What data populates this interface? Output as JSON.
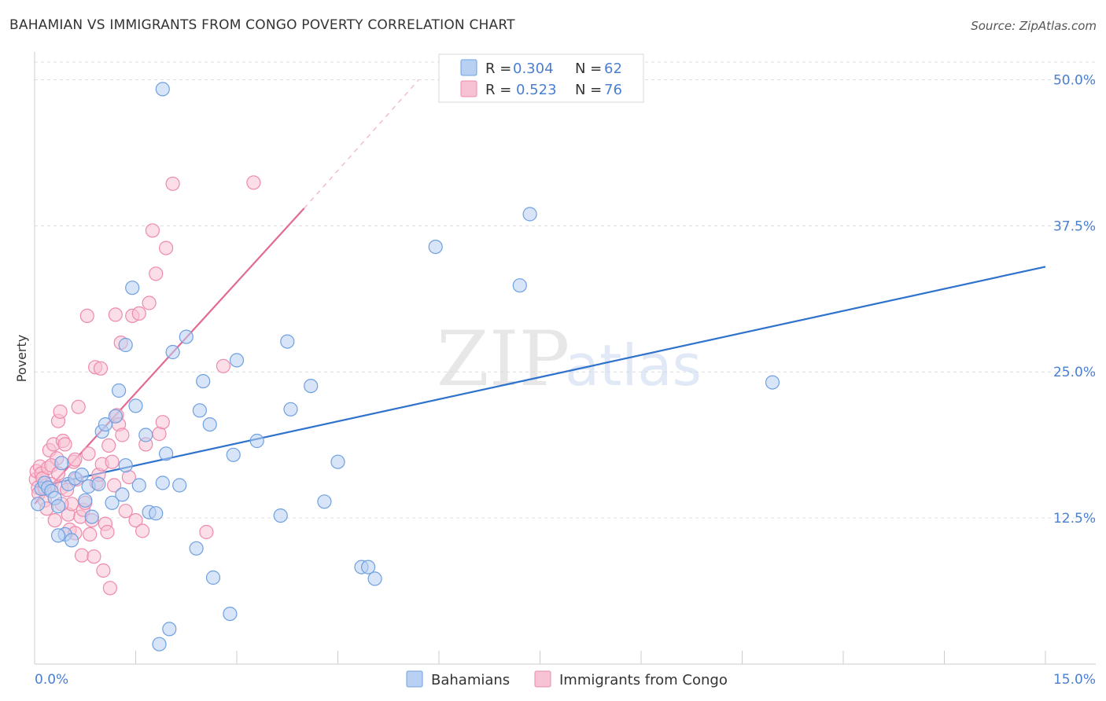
{
  "title": "BAHAMIAN VS IMMIGRANTS FROM CONGO POVERTY CORRELATION CHART",
  "source": "Source: ZipAtlas.com",
  "watermark": {
    "zip": "ZIP",
    "atlas": "atlas"
  },
  "colors": {
    "blue": "#6fa0e0",
    "blue_fill": "#b8d0f2",
    "blue_line": "#2f72cc",
    "pink": "#ee8aab",
    "pink_fill": "#f7c2d4",
    "pink_line": "#e26a92",
    "accent_text": "#4a7fd0",
    "grid": "#dddddd"
  },
  "legend": {
    "items": [
      {
        "r_label": "R =",
        "r_value": "0.304",
        "n_label": "N =",
        "n_value": "62"
      },
      {
        "r_label": "R =",
        "r_value": "0.523",
        "n_label": "N =",
        "n_value": "76"
      }
    ]
  },
  "bottom_legend": {
    "bahamians": "Bahamians",
    "congo": "Immigrants from Congo"
  },
  "chart_data": {
    "type": "scatter",
    "title": "BAHAMIAN VS IMMIGRANTS FROM CONGO POVERTY CORRELATION CHART",
    "xlabel": "",
    "ylabel": "Poverty",
    "xlim": [
      0.0,
      15.0
    ],
    "ylim": [
      0.0,
      50.0
    ],
    "x_tick_labels": [
      "0.0%",
      "15.0%"
    ],
    "y_ticks": [
      12.5,
      25.0,
      37.5,
      50.0
    ],
    "y_tick_labels": [
      "12.5%",
      "25.0%",
      "37.5%",
      "50.0%"
    ],
    "legend_position": "top-center",
    "series": [
      {
        "name": "Bahamians",
        "r": 0.304,
        "n": 62,
        "trend": {
          "x0": 0.0,
          "y0": 15.1,
          "x1": 15.0,
          "y1": 34.0,
          "dashed_extension": false
        },
        "points": [
          [
            0.05,
            13.7
          ],
          [
            0.1,
            15.0
          ],
          [
            0.15,
            15.5
          ],
          [
            0.2,
            15.1
          ],
          [
            0.25,
            14.8
          ],
          [
            0.3,
            14.2
          ],
          [
            0.35,
            13.5
          ],
          [
            0.4,
            17.2
          ],
          [
            0.45,
            11.1
          ],
          [
            0.5,
            15.4
          ],
          [
            0.55,
            10.6
          ],
          [
            0.6,
            15.9
          ],
          [
            0.7,
            16.2
          ],
          [
            0.75,
            14.0
          ],
          [
            0.8,
            15.2
          ],
          [
            0.85,
            12.6
          ],
          [
            0.95,
            15.4
          ],
          [
            1.0,
            19.9
          ],
          [
            1.05,
            20.5
          ],
          [
            1.15,
            13.8
          ],
          [
            1.2,
            21.2
          ],
          [
            1.25,
            23.4
          ],
          [
            1.3,
            14.5
          ],
          [
            1.35,
            17.0
          ],
          [
            1.35,
            27.3
          ],
          [
            1.45,
            32.2
          ],
          [
            1.5,
            22.1
          ],
          [
            1.55,
            15.3
          ],
          [
            1.65,
            19.6
          ],
          [
            1.7,
            13.0
          ],
          [
            1.8,
            12.9
          ],
          [
            1.9,
            15.5
          ],
          [
            1.95,
            18.0
          ],
          [
            2.0,
            3.0
          ],
          [
            2.05,
            26.7
          ],
          [
            2.15,
            15.3
          ],
          [
            2.25,
            28.0
          ],
          [
            2.4,
            9.9
          ],
          [
            2.45,
            21.7
          ],
          [
            2.5,
            24.2
          ],
          [
            2.6,
            20.5
          ],
          [
            2.65,
            7.4
          ],
          [
            2.9,
            4.3
          ],
          [
            2.95,
            17.9
          ],
          [
            3.0,
            26.0
          ],
          [
            3.3,
            19.1
          ],
          [
            3.65,
            12.7
          ],
          [
            3.75,
            27.6
          ],
          [
            3.8,
            21.8
          ],
          [
            4.1,
            23.8
          ],
          [
            4.3,
            13.9
          ],
          [
            4.5,
            17.3
          ],
          [
            4.85,
            8.3
          ],
          [
            4.95,
            8.3
          ],
          [
            5.05,
            7.3
          ],
          [
            1.85,
            1.7
          ],
          [
            5.95,
            35.7
          ],
          [
            7.2,
            32.4
          ],
          [
            7.35,
            38.5
          ],
          [
            10.95,
            24.1
          ],
          [
            1.9,
            49.2
          ],
          [
            0.35,
            11.0
          ]
        ]
      },
      {
        "name": "Immigrants from Congo",
        "r": 0.523,
        "n": 76,
        "trend": {
          "x0": 0.0,
          "y0": 13.7,
          "x1": 4.0,
          "y1": 39.0,
          "dashed_extension": true,
          "dash_x1": 5.7,
          "dash_y1": 50.0
        },
        "points": [
          [
            0.02,
            15.8
          ],
          [
            0.03,
            16.5
          ],
          [
            0.05,
            15.1
          ],
          [
            0.06,
            14.6
          ],
          [
            0.08,
            16.9
          ],
          [
            0.1,
            16.3
          ],
          [
            0.12,
            15.9
          ],
          [
            0.15,
            14.0
          ],
          [
            0.18,
            13.3
          ],
          [
            0.2,
            16.8
          ],
          [
            0.22,
            18.3
          ],
          [
            0.25,
            15.4
          ],
          [
            0.28,
            18.8
          ],
          [
            0.3,
            12.3
          ],
          [
            0.33,
            17.6
          ],
          [
            0.35,
            20.8
          ],
          [
            0.38,
            21.6
          ],
          [
            0.4,
            15.1
          ],
          [
            0.42,
            19.1
          ],
          [
            0.45,
            18.8
          ],
          [
            0.48,
            14.9
          ],
          [
            0.5,
            12.8
          ],
          [
            0.52,
            11.5
          ],
          [
            0.55,
            13.7
          ],
          [
            0.58,
            17.3
          ],
          [
            0.6,
            11.2
          ],
          [
            0.62,
            15.8
          ],
          [
            0.65,
            22.0
          ],
          [
            0.68,
            12.6
          ],
          [
            0.7,
            9.3
          ],
          [
            0.72,
            13.2
          ],
          [
            0.75,
            13.8
          ],
          [
            0.78,
            29.8
          ],
          [
            0.8,
            18.0
          ],
          [
            0.82,
            11.1
          ],
          [
            0.85,
            12.3
          ],
          [
            0.88,
            9.2
          ],
          [
            0.9,
            25.4
          ],
          [
            0.92,
            15.5
          ],
          [
            0.95,
            16.2
          ],
          [
            0.98,
            25.3
          ],
          [
            1.0,
            17.1
          ],
          [
            1.02,
            8.0
          ],
          [
            1.05,
            12.0
          ],
          [
            1.08,
            11.3
          ],
          [
            1.1,
            18.7
          ],
          [
            1.12,
            6.5
          ],
          [
            1.15,
            17.3
          ],
          [
            1.18,
            15.3
          ],
          [
            1.2,
            29.9
          ],
          [
            1.22,
            21.3
          ],
          [
            1.25,
            20.5
          ],
          [
            1.28,
            27.5
          ],
          [
            1.3,
            19.6
          ],
          [
            1.35,
            13.1
          ],
          [
            1.4,
            16.0
          ],
          [
            1.45,
            29.8
          ],
          [
            1.5,
            12.3
          ],
          [
            1.55,
            30.0
          ],
          [
            1.6,
            11.4
          ],
          [
            1.65,
            18.8
          ],
          [
            1.7,
            30.9
          ],
          [
            1.75,
            37.1
          ],
          [
            1.8,
            33.4
          ],
          [
            1.85,
            19.7
          ],
          [
            1.9,
            20.7
          ],
          [
            1.95,
            35.6
          ],
          [
            2.05,
            41.1
          ],
          [
            2.55,
            11.3
          ],
          [
            2.8,
            25.5
          ],
          [
            3.25,
            41.2
          ],
          [
            0.4,
            13.7
          ],
          [
            0.25,
            17.0
          ],
          [
            0.6,
            17.5
          ],
          [
            0.15,
            15.0
          ],
          [
            0.35,
            16.3
          ]
        ]
      }
    ]
  }
}
